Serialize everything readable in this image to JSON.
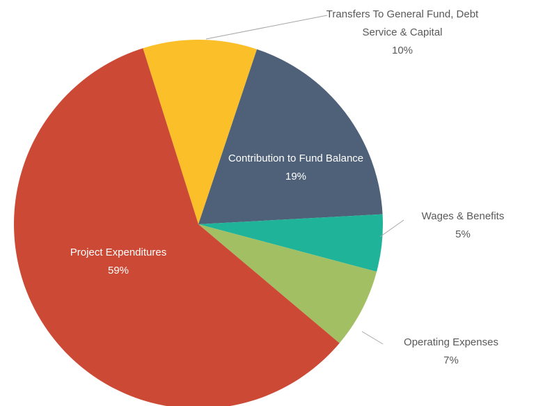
{
  "chart_data": {
    "type": "pie",
    "categories": [
      "Transfers To General Fund, Debt Service & Capital",
      "Contribution to Fund Balance",
      "Wages & Benefits",
      "Operating Expenses",
      "Project Expenditures"
    ],
    "values": [
      10,
      19,
      5,
      7,
      59
    ],
    "value_labels": [
      "10%",
      "19%",
      "5%",
      "7%",
      "59%"
    ],
    "colors": [
      "#fbbf2a",
      "#4f6179",
      "#1fb49a",
      "#a3bf63",
      "#cc4a35"
    ]
  }
}
